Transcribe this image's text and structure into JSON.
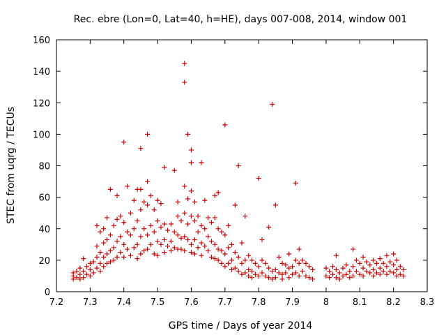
{
  "chart_data": {
    "type": "scatter",
    "title": "Rec. ebre (Lon=0, Lat=40, h=HE), days 007-008, 2014, window 001",
    "xlabel": "GPS time / Days of year 2014",
    "ylabel": "STEC from uqrg / TECUs",
    "xlim": [
      7.2,
      8.3
    ],
    "ylim": [
      0,
      160
    ],
    "xticks": [
      7.2,
      7.3,
      7.4,
      7.5,
      7.6,
      7.7,
      7.8,
      7.9,
      8.0,
      8.1,
      8.2,
      8.3
    ],
    "xtick_labels": [
      "7.2",
      "7.3",
      "7.4",
      "7.5",
      "7.6",
      "7.7",
      "7.8",
      "7.9",
      "8",
      "8.1",
      "8.2",
      "8.3"
    ],
    "yticks": [
      0,
      20,
      40,
      60,
      80,
      100,
      120,
      140,
      160
    ],
    "ytick_labels": [
      "0",
      "20",
      "40",
      "60",
      "80",
      "100",
      "120",
      "140",
      "160"
    ],
    "marker": "+",
    "color": "#cc0000",
    "grid": false,
    "series": [
      {
        "name": "STEC",
        "points": [
          [
            7.25,
            12
          ],
          [
            7.25,
            10
          ],
          [
            7.25,
            8
          ],
          [
            7.26,
            13
          ],
          [
            7.26,
            9
          ],
          [
            7.27,
            15
          ],
          [
            7.27,
            11
          ],
          [
            7.27,
            8
          ],
          [
            7.28,
            21
          ],
          [
            7.28,
            13
          ],
          [
            7.28,
            9
          ],
          [
            7.29,
            16
          ],
          [
            7.29,
            11
          ],
          [
            7.3,
            18
          ],
          [
            7.3,
            14
          ],
          [
            7.3,
            10
          ],
          [
            7.31,
            19
          ],
          [
            7.31,
            12
          ],
          [
            7.32,
            42
          ],
          [
            7.32,
            29
          ],
          [
            7.32,
            22
          ],
          [
            7.32,
            15
          ],
          [
            7.33,
            38
          ],
          [
            7.33,
            25
          ],
          [
            7.33,
            18
          ],
          [
            7.33,
            13
          ],
          [
            7.34,
            40
          ],
          [
            7.34,
            31
          ],
          [
            7.34,
            22
          ],
          [
            7.34,
            16
          ],
          [
            7.35,
            47
          ],
          [
            7.35,
            33
          ],
          [
            7.35,
            24
          ],
          [
            7.35,
            18
          ],
          [
            7.36,
            65
          ],
          [
            7.36,
            36
          ],
          [
            7.36,
            26
          ],
          [
            7.36,
            19
          ],
          [
            7.37,
            42
          ],
          [
            7.37,
            28
          ],
          [
            7.37,
            20
          ],
          [
            7.38,
            61
          ],
          [
            7.38,
            46
          ],
          [
            7.38,
            32
          ],
          [
            7.38,
            22
          ],
          [
            7.39,
            48
          ],
          [
            7.39,
            35
          ],
          [
            7.39,
            25
          ],
          [
            7.4,
            95
          ],
          [
            7.4,
            44
          ],
          [
            7.4,
            30
          ],
          [
            7.4,
            22
          ],
          [
            7.41,
            67
          ],
          [
            7.41,
            38
          ],
          [
            7.41,
            27
          ],
          [
            7.42,
            50
          ],
          [
            7.42,
            36
          ],
          [
            7.42,
            23
          ],
          [
            7.43,
            58
          ],
          [
            7.43,
            40
          ],
          [
            7.43,
            28
          ],
          [
            7.44,
            65
          ],
          [
            7.44,
            45
          ],
          [
            7.44,
            30
          ],
          [
            7.44,
            21
          ],
          [
            7.45,
            91
          ],
          [
            7.45,
            65
          ],
          [
            7.45,
            52
          ],
          [
            7.45,
            35
          ],
          [
            7.45,
            24
          ],
          [
            7.46,
            57
          ],
          [
            7.46,
            40
          ],
          [
            7.46,
            26
          ],
          [
            7.47,
            100
          ],
          [
            7.47,
            70
          ],
          [
            7.47,
            55
          ],
          [
            7.47,
            36
          ],
          [
            7.47,
            27
          ],
          [
            7.48,
            61
          ],
          [
            7.48,
            42
          ],
          [
            7.48,
            30
          ],
          [
            7.49,
            52
          ],
          [
            7.49,
            38
          ],
          [
            7.49,
            24
          ],
          [
            7.5,
            58
          ],
          [
            7.5,
            45
          ],
          [
            7.5,
            32
          ],
          [
            7.5,
            23
          ],
          [
            7.51,
            56
          ],
          [
            7.51,
            41
          ],
          [
            7.51,
            30
          ],
          [
            7.52,
            79
          ],
          [
            7.52,
            43
          ],
          [
            7.52,
            33
          ],
          [
            7.52,
            25
          ],
          [
            7.53,
            39
          ],
          [
            7.53,
            29
          ],
          [
            7.54,
            43
          ],
          [
            7.54,
            32
          ],
          [
            7.54,
            26
          ],
          [
            7.55,
            77
          ],
          [
            7.55,
            38
          ],
          [
            7.55,
            28
          ],
          [
            7.56,
            57
          ],
          [
            7.56,
            48
          ],
          [
            7.56,
            36
          ],
          [
            7.56,
            27
          ],
          [
            7.57,
            45
          ],
          [
            7.57,
            34
          ],
          [
            7.57,
            27
          ],
          [
            7.58,
            145
          ],
          [
            7.58,
            133
          ],
          [
            7.58,
            67
          ],
          [
            7.58,
            50
          ],
          [
            7.58,
            35
          ],
          [
            7.58,
            26
          ],
          [
            7.59,
            100
          ],
          [
            7.59,
            59
          ],
          [
            7.59,
            43
          ],
          [
            7.59,
            33
          ],
          [
            7.6,
            90
          ],
          [
            7.6,
            82
          ],
          [
            7.6,
            64
          ],
          [
            7.6,
            48
          ],
          [
            7.6,
            30
          ],
          [
            7.6,
            25
          ],
          [
            7.61,
            57
          ],
          [
            7.61,
            45
          ],
          [
            7.61,
            33
          ],
          [
            7.61,
            24
          ],
          [
            7.62,
            48
          ],
          [
            7.62,
            38
          ],
          [
            7.62,
            28
          ],
          [
            7.63,
            82
          ],
          [
            7.63,
            42
          ],
          [
            7.63,
            31
          ],
          [
            7.63,
            23
          ],
          [
            7.64,
            58
          ],
          [
            7.64,
            40
          ],
          [
            7.64,
            29
          ],
          [
            7.65,
            47
          ],
          [
            7.65,
            35
          ],
          [
            7.65,
            26
          ],
          [
            7.66,
            44
          ],
          [
            7.66,
            32
          ],
          [
            7.66,
            22
          ],
          [
            7.67,
            61
          ],
          [
            7.67,
            47
          ],
          [
            7.67,
            30
          ],
          [
            7.67,
            21
          ],
          [
            7.68,
            63
          ],
          [
            7.68,
            40
          ],
          [
            7.68,
            27
          ],
          [
            7.68,
            20
          ],
          [
            7.69,
            38
          ],
          [
            7.69,
            26
          ],
          [
            7.69,
            18
          ],
          [
            7.7,
            106
          ],
          [
            7.7,
            36
          ],
          [
            7.7,
            24
          ],
          [
            7.7,
            16
          ],
          [
            7.71,
            42
          ],
          [
            7.71,
            28
          ],
          [
            7.71,
            18
          ],
          [
            7.72,
            30
          ],
          [
            7.72,
            20
          ],
          [
            7.72,
            14
          ],
          [
            7.73,
            55
          ],
          [
            7.73,
            25
          ],
          [
            7.73,
            15
          ],
          [
            7.74,
            80
          ],
          [
            7.74,
            22
          ],
          [
            7.74,
            13
          ],
          [
            7.75,
            31
          ],
          [
            7.75,
            18
          ],
          [
            7.75,
            11
          ],
          [
            7.76,
            48
          ],
          [
            7.76,
            20
          ],
          [
            7.76,
            12
          ],
          [
            7.77,
            23
          ],
          [
            7.77,
            14
          ],
          [
            7.77,
            10
          ],
          [
            7.78,
            20
          ],
          [
            7.78,
            13
          ],
          [
            7.78,
            9
          ],
          [
            7.79,
            18
          ],
          [
            7.79,
            11
          ],
          [
            7.8,
            72
          ],
          [
            7.8,
            16
          ],
          [
            7.8,
            10
          ],
          [
            7.81,
            33
          ],
          [
            7.81,
            20
          ],
          [
            7.81,
            12
          ],
          [
            7.82,
            18
          ],
          [
            7.82,
            10
          ],
          [
            7.83,
            41
          ],
          [
            7.83,
            15
          ],
          [
            7.83,
            9
          ],
          [
            7.84,
            119
          ],
          [
            7.84,
            13
          ],
          [
            7.84,
            8
          ],
          [
            7.85,
            55
          ],
          [
            7.85,
            14
          ],
          [
            7.85,
            9
          ],
          [
            7.86,
            22
          ],
          [
            7.86,
            12
          ],
          [
            7.87,
            18
          ],
          [
            7.87,
            11
          ],
          [
            7.87,
            8
          ],
          [
            7.88,
            17
          ],
          [
            7.88,
            12
          ],
          [
            7.89,
            24
          ],
          [
            7.89,
            15
          ],
          [
            7.89,
            9
          ],
          [
            7.9,
            16
          ],
          [
            7.9,
            11
          ],
          [
            7.91,
            69
          ],
          [
            7.91,
            20
          ],
          [
            7.91,
            12
          ],
          [
            7.92,
            27
          ],
          [
            7.92,
            18
          ],
          [
            7.92,
            10
          ],
          [
            7.93,
            20
          ],
          [
            7.93,
            13
          ],
          [
            7.94,
            18
          ],
          [
            7.94,
            10
          ],
          [
            7.95,
            16
          ],
          [
            7.95,
            9
          ],
          [
            7.96,
            14
          ],
          [
            7.96,
            8
          ],
          [
            8.0,
            15
          ],
          [
            8.0,
            10
          ],
          [
            8.01,
            13
          ],
          [
            8.01,
            9
          ],
          [
            8.02,
            16
          ],
          [
            8.02,
            11
          ],
          [
            8.03,
            23
          ],
          [
            8.03,
            14
          ],
          [
            8.03,
            9
          ],
          [
            8.04,
            12
          ],
          [
            8.04,
            8
          ],
          [
            8.05,
            15
          ],
          [
            8.05,
            10
          ],
          [
            8.06,
            17
          ],
          [
            8.06,
            11
          ],
          [
            8.07,
            13
          ],
          [
            8.07,
            9
          ],
          [
            8.08,
            27
          ],
          [
            8.08,
            16
          ],
          [
            8.08,
            10
          ],
          [
            8.09,
            20
          ],
          [
            8.09,
            13
          ],
          [
            8.1,
            18
          ],
          [
            8.1,
            11
          ],
          [
            8.11,
            22
          ],
          [
            8.11,
            15
          ],
          [
            8.11,
            10
          ],
          [
            8.12,
            19
          ],
          [
            8.12,
            13
          ],
          [
            8.13,
            17
          ],
          [
            8.13,
            12
          ],
          [
            8.14,
            20
          ],
          [
            8.14,
            14
          ],
          [
            8.14,
            10
          ],
          [
            8.15,
            18
          ],
          [
            8.15,
            12
          ],
          [
            8.16,
            21
          ],
          [
            8.16,
            15
          ],
          [
            8.16,
            11
          ],
          [
            8.17,
            18
          ],
          [
            8.17,
            13
          ],
          [
            8.18,
            23
          ],
          [
            8.18,
            16
          ],
          [
            8.18,
            11
          ],
          [
            8.19,
            19
          ],
          [
            8.19,
            13
          ],
          [
            8.2,
            24
          ],
          [
            8.2,
            17
          ],
          [
            8.2,
            12
          ],
          [
            8.21,
            20
          ],
          [
            8.21,
            14
          ],
          [
            8.21,
            10
          ],
          [
            8.22,
            16
          ],
          [
            8.22,
            11
          ],
          [
            8.23,
            14
          ],
          [
            8.23,
            10
          ]
        ]
      }
    ]
  }
}
